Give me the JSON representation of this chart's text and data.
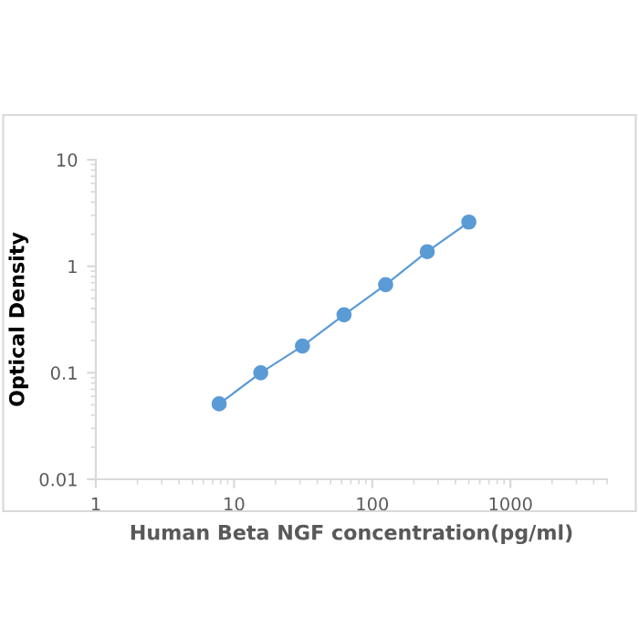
{
  "chart_data": {
    "type": "line",
    "xlabel": "Human Beta NGF concentration(pg/ml)",
    "ylabel": "Optical Density",
    "log": "xy",
    "x": [
      7.8,
      15.6,
      31.25,
      62.5,
      125,
      250,
      500
    ],
    "series": [
      {
        "color": "#5b9bd5",
        "values": [
          0.051,
          0.1,
          0.178,
          0.35,
          0.67,
          1.37,
          2.6
        ]
      }
    ],
    "marker": "circle",
    "line_style": "solid",
    "grid": false,
    "xlim": [
      1,
      5000
    ],
    "xticks": [
      1,
      10,
      100,
      1000
    ],
    "ylim": [
      0.01,
      10
    ],
    "yticks": [
      0.01,
      0.1,
      1,
      10
    ]
  }
}
